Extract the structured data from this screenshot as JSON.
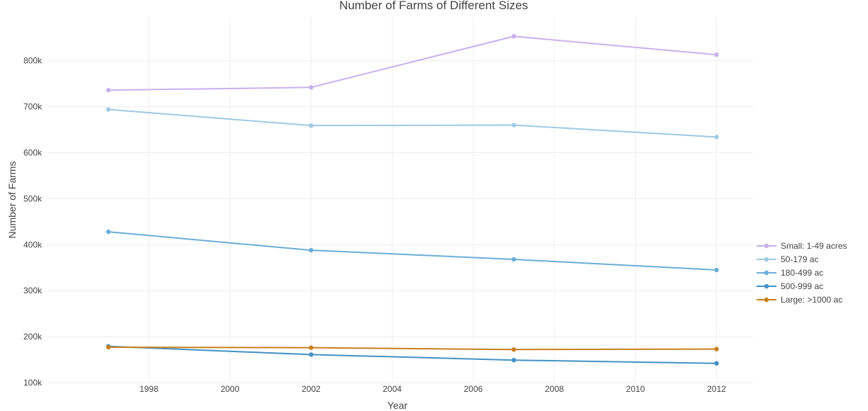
{
  "chart_data": {
    "type": "line",
    "title": "Number of Farms of Different Sizes",
    "xlabel": "Year",
    "ylabel": "Number of Farms",
    "xlim": [
      1995.5,
      2012.9
    ],
    "ylim": [
      100000,
      895000
    ],
    "x_ticks": [
      1998,
      2000,
      2002,
      2004,
      2006,
      2008,
      2010,
      2012
    ],
    "y_ticks": [
      100000,
      200000,
      300000,
      400000,
      500000,
      600000,
      700000,
      800000
    ],
    "y_tick_labels": [
      "100k",
      "200k",
      "300k",
      "400k",
      "500k",
      "600k",
      "700k",
      "800k"
    ],
    "grid": true,
    "legend_position": "right",
    "x": [
      1997,
      2002,
      2007,
      2012
    ],
    "series": [
      {
        "name": "Small: 1-49 acres",
        "color": "#c9b1ec",
        "values": [
          736000,
          742000,
          853000,
          813000
        ]
      },
      {
        "name": "50-179 ac",
        "color": "#9ecae1",
        "values": [
          694000,
          659000,
          660000,
          634000
        ]
      },
      {
        "name": "180-499 ac",
        "color": "#6baed6",
        "values": [
          428000,
          388000,
          368000,
          345000
        ]
      },
      {
        "name": "500-999 ac",
        "color": "#4292c6",
        "values": [
          179000,
          161000,
          149000,
          142000
        ]
      },
      {
        "name": "Large: >1000 ac",
        "color": "#c8801e",
        "values": [
          177000,
          176000,
          172000,
          173000
        ]
      }
    ]
  }
}
